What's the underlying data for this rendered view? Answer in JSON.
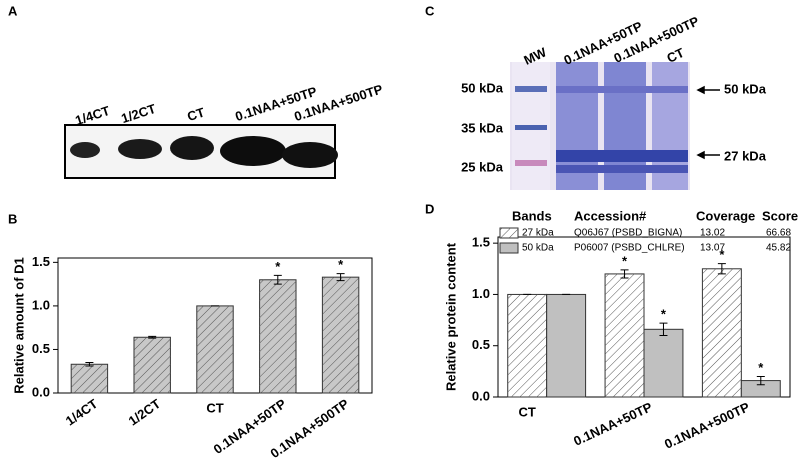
{
  "blot": {
    "panel": "A",
    "lanes": [
      "1/4CT",
      "1/2CT",
      "CT",
      "0.1NAA+50TP",
      "0.1NAA+500TP"
    ]
  },
  "gel": {
    "panel": "C",
    "lanes": [
      "MW",
      "0.1NAA+50TP",
      "0.1NAA+500TP",
      "CT"
    ],
    "markers": [
      "50 kDa",
      "35 kDa",
      "25 kDa"
    ],
    "arrows": [
      "50 kDa",
      "27 kDa"
    ]
  },
  "chart_data": [
    {
      "type": "bar",
      "panel": "B",
      "y_label": "Relative amount of D1",
      "categories": [
        "1/4CT",
        "1/2CT",
        "CT",
        "0.1NAA+50TP",
        "0.1NAA+500TP"
      ],
      "series": [
        {
          "color": "#c8c8c8",
          "hatch": true,
          "values": [
            0.33,
            0.64,
            1.0,
            1.3,
            1.33
          ],
          "errors": [
            0.02,
            0.01,
            0,
            0.05,
            0.04
          ],
          "significance": [
            null,
            null,
            null,
            "*",
            "*"
          ]
        }
      ],
      "ylim": [
        0,
        1.55
      ],
      "yticks": [
        {
          "value": 0,
          "label": "0.0"
        },
        0.5,
        {
          "value": 1,
          "label": "1.0"
        },
        1.5
      ]
    },
    {
      "type": "bar",
      "panel": "D",
      "y_label": "Relative protein content",
      "categories": [
        "CT",
        "0.1NAA+50TP",
        "0.1NAA+500TP"
      ],
      "legend_headers": [
        "Bands",
        "Accession#",
        "Coverage",
        "Score"
      ],
      "series": [
        {
          "name": "27 kDa",
          "accession": "Q06J67 (PSBD_BIGNA)",
          "coverage": 13.02,
          "score": 66.68,
          "color": "#ffffff",
          "hatch": true,
          "values": [
            1.0,
            1.2,
            1.25
          ],
          "errors": [
            0,
            0.04,
            0.05
          ],
          "significance": [
            null,
            "*",
            "*"
          ]
        },
        {
          "name": "50 kDa",
          "accession": "P06007 (PSBD_CHLRE)",
          "coverage": 13.07,
          "score": 45.82,
          "color": "#c0c0c0",
          "hatch": false,
          "values": [
            1.0,
            0.66,
            0.16
          ],
          "errors": [
            0,
            0.06,
            0.04
          ],
          "significance": [
            null,
            "*",
            "*"
          ]
        }
      ],
      "ylim": [
        0,
        1.56
      ],
      "yticks": [
        {
          "value": 0,
          "label": "0.0"
        },
        0.5,
        {
          "value": 1,
          "label": "1.0"
        },
        1.5
      ]
    }
  ]
}
